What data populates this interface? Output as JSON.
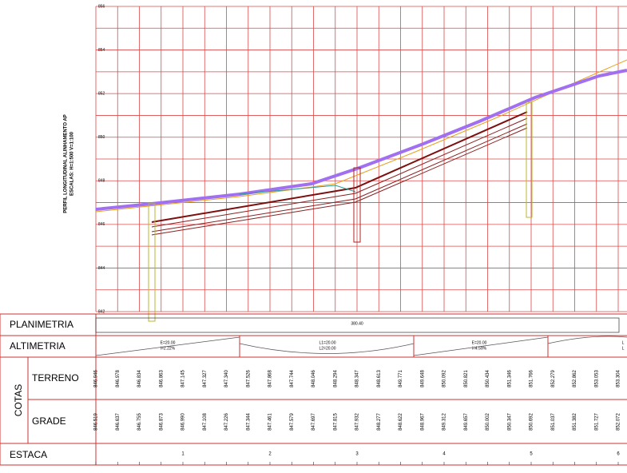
{
  "side_title": {
    "line1": "PERFIL LONGITUDINAL ALINHAMENTO AP",
    "line2": "ESCALAS: H=1:500 V=1:100"
  },
  "elevation_labels": [
    "856",
    "854",
    "852",
    "850",
    "848",
    "846",
    "844",
    "842"
  ],
  "table": {
    "planimetria": {
      "label": "PLANIMETRIA",
      "text": "380.40"
    },
    "altimetria": {
      "label": "ALTIMETRIA",
      "segments": [
        {
          "line1": "E=20.00",
          "line2": "i=2.22%"
        },
        {
          "line1": "L1=20.00",
          "line2": "L2=20.00"
        },
        {
          "line1": "E=20.00",
          "line2": "i=4.59%"
        },
        {
          "line1": "L",
          "line2": "L"
        }
      ]
    },
    "cotas": {
      "label": "COTAS",
      "terreno": {
        "label": "TERRENO",
        "values": [
          "846.946",
          "846.978",
          "846.834",
          "846.863",
          "847.145",
          "847.327",
          "847.340",
          "847.526",
          "847.868",
          "847.744",
          "848.046",
          "848.294",
          "848.347",
          "848.613",
          "849.771",
          "849.648",
          "850.092",
          "850.821",
          "850.434",
          "851.346",
          "851.766",
          "852.279",
          "852.862",
          "853.053",
          "853.304"
        ]
      },
      "grade": {
        "label": "GRADE",
        "values": [
          "846.519",
          "846.637",
          "846.755",
          "846.873",
          "846.990",
          "847.108",
          "847.226",
          "847.344",
          "847.461",
          "847.579",
          "847.697",
          "847.815",
          "847.932",
          "848.277",
          "848.622",
          "848.967",
          "849.312",
          "849.657",
          "850.002",
          "850.347",
          "850.692",
          "851.037",
          "851.382",
          "851.727",
          "852.072"
        ]
      }
    },
    "estaca": {
      "label": "ESTACA",
      "stations": [
        "1",
        "2",
        "3",
        "4",
        "5",
        "6"
      ]
    }
  }
}
